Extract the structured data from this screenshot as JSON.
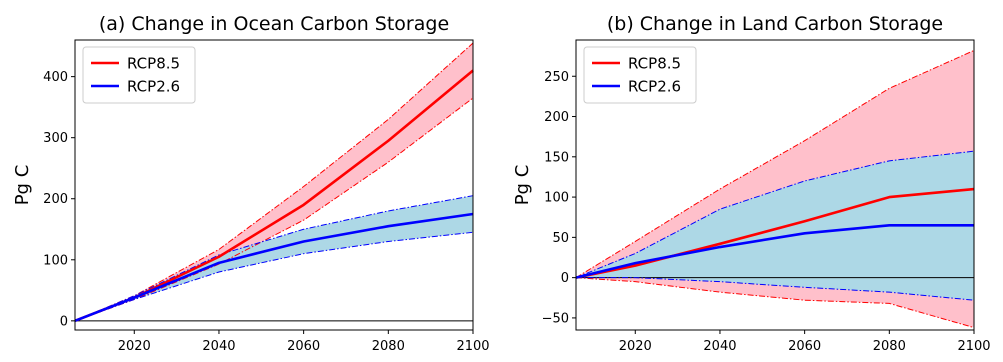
{
  "chart_data": [
    {
      "type": "line",
      "title": "(a)  Change in Ocean Carbon Storage",
      "xlabel": "",
      "ylabel": "Pg C",
      "xlim": [
        2006,
        2100
      ],
      "ylim": [
        -15,
        460
      ],
      "xticks": [
        2020,
        2040,
        2060,
        2080,
        2100
      ],
      "yticks": [
        0,
        100,
        200,
        300,
        400
      ],
      "legend_position": "top-left",
      "zero_line": true,
      "x": [
        2006,
        2020,
        2040,
        2060,
        2080,
        2100
      ],
      "series": [
        {
          "name": "RCP8.5",
          "color": "#ff0000",
          "band_color": "#ffc0cb",
          "values": [
            0,
            38,
            105,
            190,
            295,
            410
          ],
          "lower": [
            0,
            35,
            93,
            165,
            260,
            365
          ],
          "upper": [
            0,
            41,
            117,
            220,
            330,
            455
          ]
        },
        {
          "name": "RCP2.6",
          "color": "#0000ff",
          "band_color": "#add8e6",
          "values": [
            0,
            38,
            95,
            130,
            155,
            175
          ],
          "lower": [
            0,
            35,
            80,
            110,
            130,
            145
          ],
          "upper": [
            0,
            41,
            108,
            150,
            180,
            205
          ]
        }
      ]
    },
    {
      "type": "line",
      "title": "(b)  Change in Land Carbon Storage",
      "xlabel": "",
      "ylabel": "Pg C",
      "xlim": [
        2006,
        2100
      ],
      "ylim": [
        -65,
        295
      ],
      "xticks": [
        2020,
        2040,
        2060,
        2080,
        2100
      ],
      "yticks": [
        -50,
        0,
        50,
        100,
        150,
        200,
        250
      ],
      "legend_position": "top-left",
      "zero_line": true,
      "x": [
        2006,
        2020,
        2040,
        2060,
        2080,
        2100
      ],
      "series": [
        {
          "name": "RCP8.5",
          "color": "#ff0000",
          "band_color": "#ffc0cb",
          "values": [
            0,
            15,
            42,
            70,
            100,
            110
          ],
          "lower": [
            0,
            -5,
            -18,
            -28,
            -32,
            -62
          ],
          "upper": [
            0,
            45,
            110,
            170,
            235,
            282
          ]
        },
        {
          "name": "RCP2.6",
          "color": "#0000ff",
          "band_color": "#add8e6",
          "values": [
            0,
            18,
            38,
            55,
            65,
            65
          ],
          "lower": [
            0,
            0,
            -5,
            -12,
            -18,
            -28
          ],
          "upper": [
            0,
            30,
            85,
            120,
            145,
            157
          ]
        }
      ]
    }
  ]
}
